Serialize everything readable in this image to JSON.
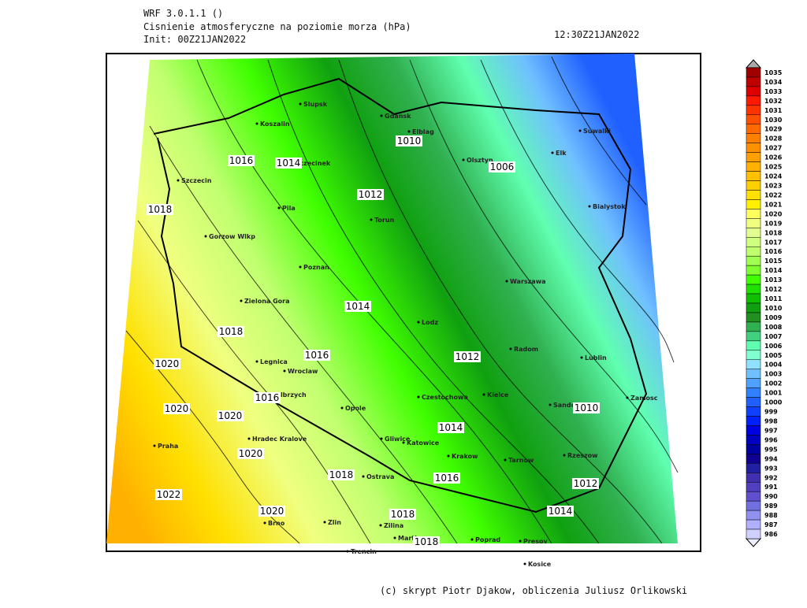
{
  "header": {
    "model": "WRF 3.0.1.1 ()",
    "title": "Cisnienie atmosferyczne na poziomie morza (hPa)",
    "init": "Init: 00Z21JAN2022",
    "valid": "12:30Z21JAN2022"
  },
  "footer": "(c) skrypt Piotr Djakow, obliczenia Juliusz Orlikowski",
  "cities": [
    "Slupsk",
    "Koszalin",
    "Gdansk",
    "Elblag",
    "Suwalki",
    "Elk",
    "Olsztyn",
    "Szczecinek",
    "Szczecin",
    "Bialystok",
    "Pila",
    "Torun",
    "Gorzow Wlkp",
    "Poznan",
    "Warszawa",
    "Zielona Gora",
    "Lodz",
    "Radom",
    "Lublin",
    "Legnica",
    "Wroclaw",
    "Walbrzych",
    "Kielce",
    "Sandomierz",
    "Zamosc",
    "Opole",
    "Czestochowa",
    "Gliwice",
    "Katowice",
    "Hradec Kralove",
    "Praha",
    "Krakow",
    "Rzeszow",
    "Tarnow",
    "Ostrava",
    "Brno",
    "Zlin",
    "Zilina",
    "Martin",
    "Poprad",
    "Presov",
    "Trencin",
    "Kosice"
  ],
  "contour_labels": [
    1010,
    1006,
    1016,
    1014,
    1012,
    1018,
    1014,
    1018,
    1016,
    1012,
    1020,
    1016,
    1020,
    1020,
    1010,
    1014,
    1020,
    1018,
    1016,
    1012,
    1022,
    1020,
    1014,
    1018,
    1018
  ],
  "colorbar": {
    "levels": [
      1035,
      1034,
      1033,
      1032,
      1031,
      1030,
      1029,
      1028,
      1027,
      1026,
      1025,
      1024,
      1023,
      1022,
      1021,
      1020,
      1019,
      1018,
      1017,
      1016,
      1015,
      1014,
      1013,
      1012,
      1011,
      1010,
      1009,
      1008,
      1007,
      1006,
      1005,
      1004,
      1003,
      1002,
      1001,
      1000,
      999,
      998,
      997,
      996,
      995,
      994,
      993,
      992,
      991,
      990,
      989,
      988,
      987,
      986
    ],
    "colors": [
      "#a00000",
      "#c00000",
      "#e00000",
      "#ff1a00",
      "#ff3300",
      "#ff5000",
      "#ff6a00",
      "#ff7f00",
      "#ff9000",
      "#ffa000",
      "#ffb000",
      "#ffc000",
      "#ffd000",
      "#ffe000",
      "#fff000",
      "#ffff60",
      "#f0ff80",
      "#e0ff90",
      "#d0ff80",
      "#c0ff70",
      "#a0ff50",
      "#80ff30",
      "#40ff00",
      "#20e000",
      "#10c000",
      "#10a010",
      "#209020",
      "#30b050",
      "#40d080",
      "#60ffb0",
      "#80ffd0",
      "#90e0ff",
      "#70c0ff",
      "#50a0ff",
      "#3080ff",
      "#2060ff",
      "#1040ff",
      "#0020ff",
      "#0000e0",
      "#0000c0",
      "#0000a0",
      "#100090",
      "#2020a0",
      "#4030b0",
      "#5040c0",
      "#6050d0",
      "#7070e0",
      "#9090f0",
      "#b0b0ff",
      "#d0d0ff"
    ]
  }
}
